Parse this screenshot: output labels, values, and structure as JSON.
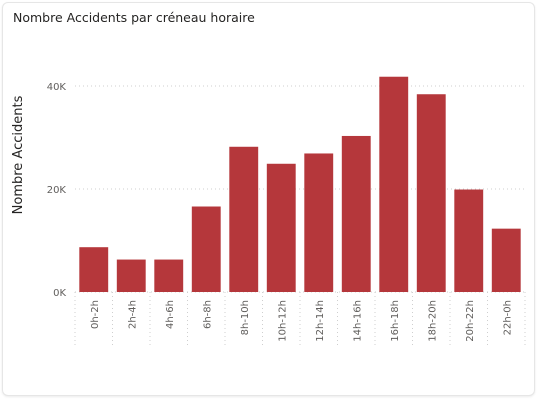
{
  "chart_data": {
    "type": "bar",
    "title": "Nombre Accidents par créneau horaire",
    "xlabel": "",
    "ylabel": "Nombre Accidents",
    "categories": [
      "0h-2h",
      "2h-4h",
      "4h-6h",
      "6h-8h",
      "8h-10h",
      "10h-12h",
      "12h-14h",
      "14h-16h",
      "16h-18h",
      "18h-20h",
      "20h-22h",
      "22h-0h"
    ],
    "values": [
      8700,
      6300,
      6300,
      16600,
      28200,
      24900,
      26900,
      30300,
      41800,
      38400,
      19900,
      12300
    ],
    "ylim": [
      0,
      45000
    ],
    "yticks": [
      0,
      20000,
      40000
    ],
    "ytick_labels": [
      "0K",
      "20K",
      "40K"
    ],
    "grid": true,
    "bar_color": "#b5373b",
    "grid_color": "#cfcfcf"
  }
}
